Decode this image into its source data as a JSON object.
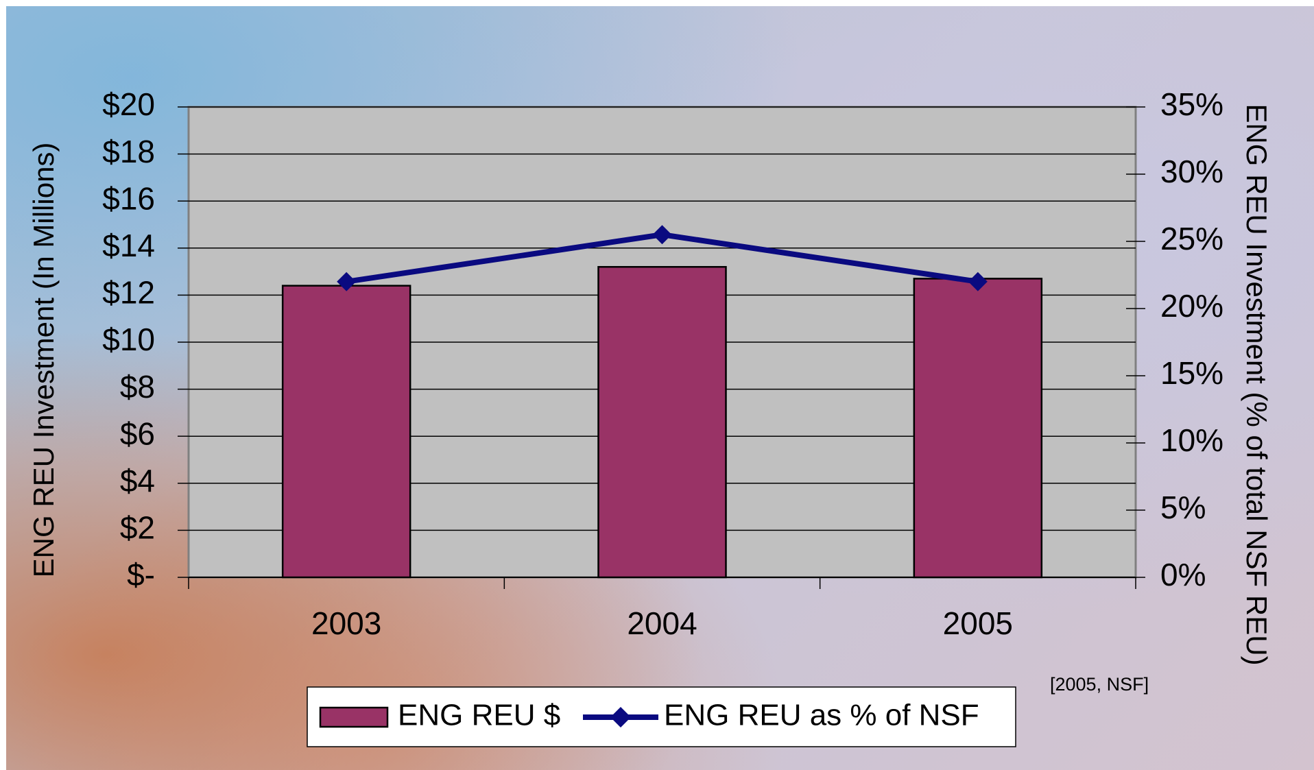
{
  "chart_data": {
    "type": "bar+line",
    "categories": [
      "2003",
      "2004",
      "2005"
    ],
    "series": [
      {
        "name": "ENG REU $",
        "type": "bar",
        "axis": "y",
        "color": "#993366",
        "values": [
          12.4,
          13.2,
          12.7
        ]
      },
      {
        "name": "ENG REU as % of NSF",
        "type": "line",
        "axis": "y2",
        "color": "#0a0a80",
        "values": [
          22,
          25.5,
          22
        ]
      }
    ],
    "ylabel": "ENG REU Investment (In Millions)",
    "y2label": "ENG REU Investment (% of total NSF REU)",
    "ylim": [
      0,
      20
    ],
    "yticks": [
      {
        "value": 0,
        "label": "$-"
      },
      {
        "value": 2,
        "label": "$2"
      },
      {
        "value": 4,
        "label": "$4"
      },
      {
        "value": 6,
        "label": "$6"
      },
      {
        "value": 8,
        "label": "$8"
      },
      {
        "value": 10,
        "label": "$10"
      },
      {
        "value": 12,
        "label": "$12"
      },
      {
        "value": 14,
        "label": "$14"
      },
      {
        "value": 16,
        "label": "$16"
      },
      {
        "value": 18,
        "label": "$18"
      },
      {
        "value": 20,
        "label": "$20"
      }
    ],
    "y2lim": [
      0,
      35
    ],
    "y2ticks": [
      {
        "value": 0,
        "label": "0%"
      },
      {
        "value": 5,
        "label": "5%"
      },
      {
        "value": 10,
        "label": "10%"
      },
      {
        "value": 15,
        "label": "15%"
      },
      {
        "value": 20,
        "label": "20%"
      },
      {
        "value": 25,
        "label": "25%"
      },
      {
        "value": 30,
        "label": "30%"
      },
      {
        "value": 35,
        "label": "35%"
      }
    ],
    "grid": true,
    "legend": "bottom",
    "annotation": "[2005, NSF]"
  }
}
